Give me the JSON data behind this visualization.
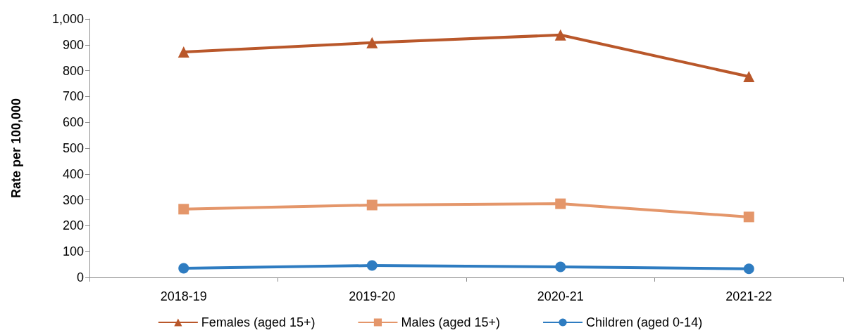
{
  "chart_data": {
    "type": "line",
    "ylabel": "Rate per 100,000",
    "categories": [
      "2018-19",
      "2019-20",
      "2020-21",
      "2021-22"
    ],
    "series": [
      {
        "name": "Females (aged 15+)",
        "color": "#b9572a",
        "marker": "triangle",
        "values": [
          872,
          908,
          938,
          777
        ]
      },
      {
        "name": "Males (aged 15+)",
        "color": "#e4966a",
        "marker": "square",
        "values": [
          264,
          280,
          285,
          234
        ]
      },
      {
        "name": "Children (aged 0-14)",
        "color": "#2e7cc1",
        "marker": "circle",
        "values": [
          35,
          46,
          41,
          33
        ]
      }
    ],
    "ylim": [
      0,
      1000
    ],
    "yticks": [
      0,
      100,
      200,
      300,
      400,
      500,
      600,
      700,
      800,
      900,
      {
        "value": 1000,
        "label": "1,000"
      }
    ],
    "grid": false,
    "legend": "bottom"
  }
}
